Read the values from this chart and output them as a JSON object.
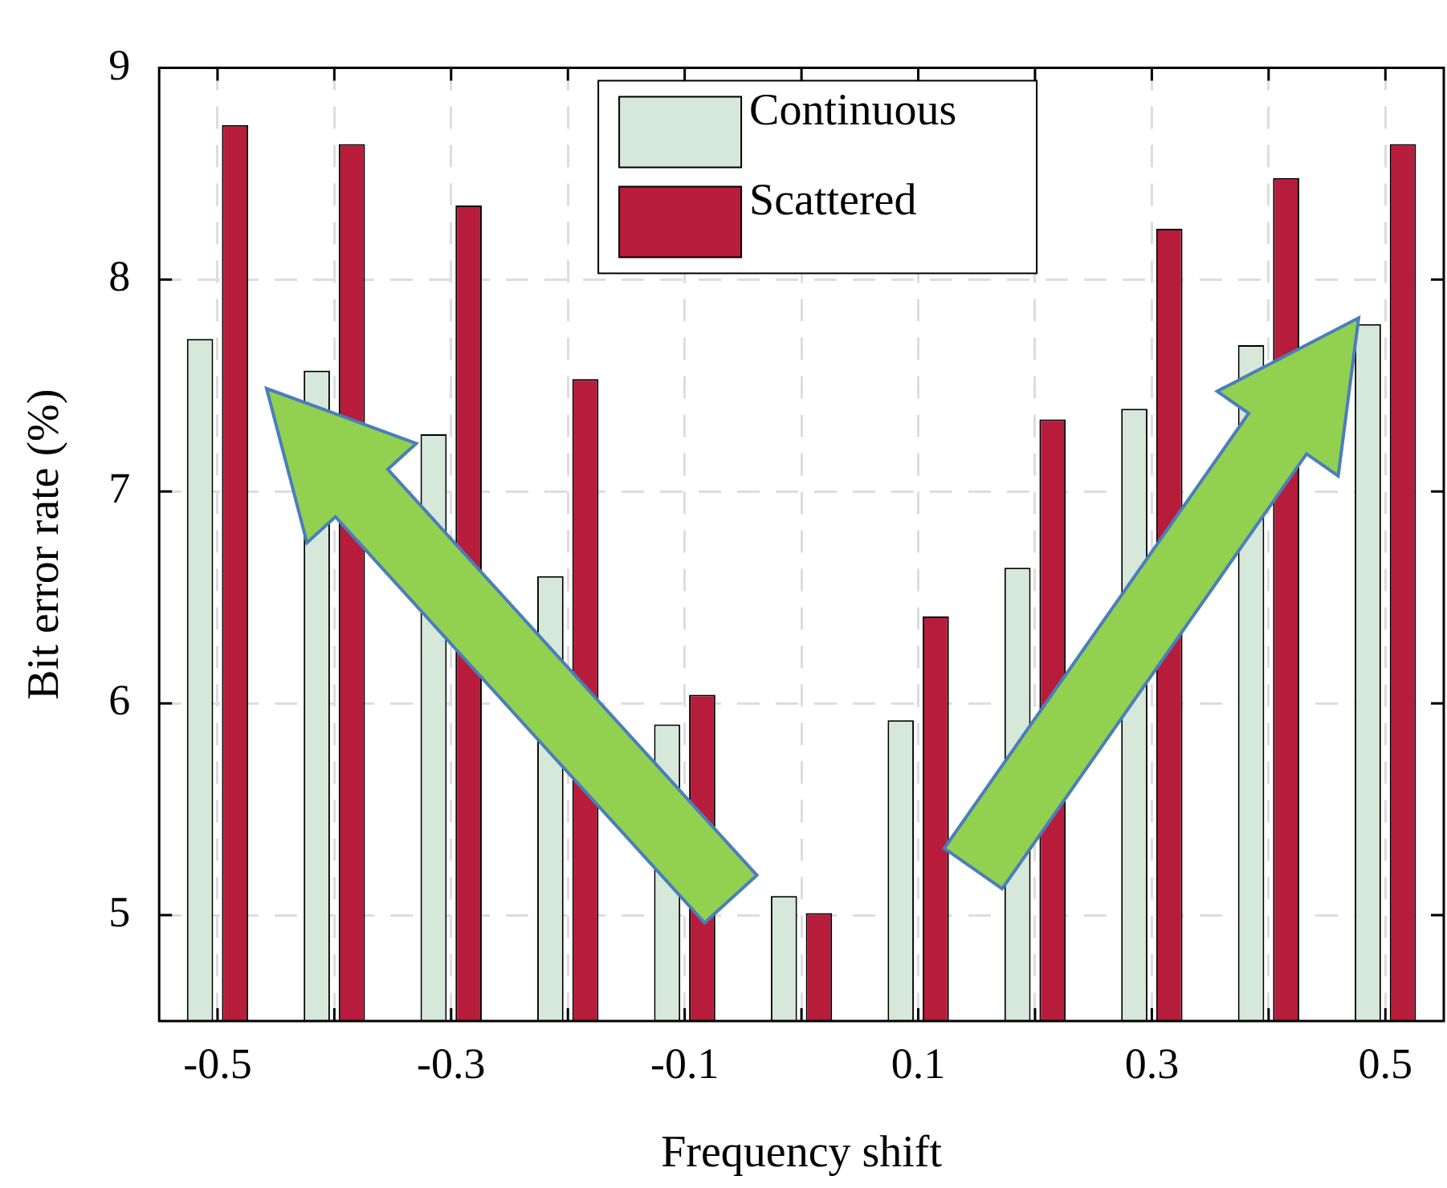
{
  "chart_data": {
    "type": "bar",
    "xlabel": "Frequency shift",
    "ylabel": "Bit error rate (%)",
    "categories": [
      "-0.5",
      null,
      "-0.3",
      null,
      "-0.1",
      null,
      "0.1",
      null,
      "0.3",
      null,
      "0.5"
    ],
    "series": [
      {
        "name": "Continuous",
        "color": "#d5e8d9",
        "values": [
          7.72,
          7.57,
          7.27,
          6.6,
          5.9,
          5.09,
          5.92,
          6.64,
          7.39,
          7.69,
          7.79
        ]
      },
      {
        "name": "Scattered",
        "color": "#b81c3b",
        "values": [
          8.73,
          8.64,
          8.35,
          7.53,
          6.04,
          5.01,
          6.41,
          7.34,
          8.24,
          8.48,
          8.64
        ]
      }
    ],
    "ylim": [
      4.5,
      9
    ],
    "yticks": [
      5,
      6,
      7,
      8,
      9
    ],
    "grid": true,
    "legend": "top"
  }
}
